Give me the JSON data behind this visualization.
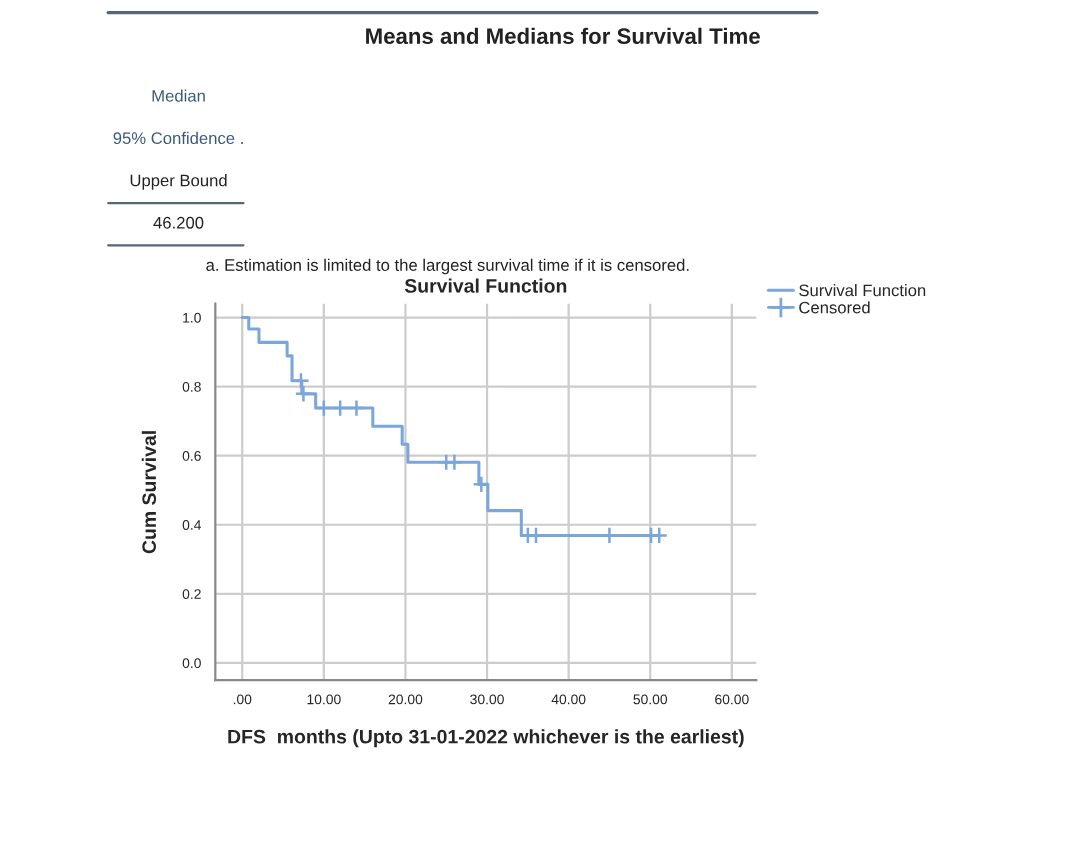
{
  "chart_data": {
    "type": "step",
    "title": "Survival Function",
    "xlabel": "DFS  months (Upto 31-01-2022 whichever is the earliest)",
    "ylabel": "Cum Survival",
    "annotations": [
      "Means and Medians for Survival Time",
      "Median",
      "95% Confidence .",
      "Upper Bound",
      "46.200",
      "a. Estimation is limited to the largest survival time if it is censored."
    ],
    "series": [
      {
        "name": "Survival Function",
        "color": "#7aa6dc",
        "marker": "none",
        "x": [
          0,
          0.8,
          2.05,
          5.5,
          6.1,
          7.3,
          9.0,
          16.0,
          19.6,
          20.3,
          29.0,
          30.1,
          34.2,
          51.1
        ],
        "values": [
          1.0,
          0.967,
          0.928,
          0.889,
          0.817,
          0.779,
          0.738,
          0.685,
          0.633,
          0.581,
          0.517,
          0.441,
          0.369,
          0.369
        ]
      },
      {
        "name": "Censored",
        "type": "scatter",
        "color": "#7aa6dc",
        "marker": "cross",
        "x": [
          7.2,
          7.5,
          10,
          12,
          14,
          25,
          26,
          29.3,
          35,
          36,
          45,
          50.1,
          51.1
        ],
        "values": [
          0.817,
          0.779,
          0.738,
          0.738,
          0.738,
          0.581,
          0.581,
          0.517,
          0.369,
          0.369,
          0.369,
          0.369,
          0.369
        ]
      }
    ],
    "xlim": [
      -3.3,
      63
    ],
    "ylim": [
      -0.05,
      1.04
    ],
    "xticks": [
      {
        "value": 0,
        "label": ".00"
      },
      {
        "value": 10,
        "label": "10.00"
      },
      {
        "value": 20,
        "label": "20.00"
      },
      {
        "value": 30,
        "label": "30.00"
      },
      {
        "value": 40,
        "label": "40.00"
      },
      {
        "value": 50,
        "label": "50.00"
      },
      {
        "value": 60,
        "label": "60.00"
      }
    ],
    "yticks": [
      {
        "value": 0,
        "label": "0.0"
      },
      {
        "value": 0.2,
        "label": "0.2"
      },
      {
        "value": 0.4,
        "label": "0.4"
      },
      {
        "value": 0.6,
        "label": "0.6"
      },
      {
        "value": 0.8,
        "label": "0.8"
      },
      {
        "value": 1.0,
        "label": "1.0"
      }
    ],
    "grid": true,
    "legend": "top right"
  }
}
